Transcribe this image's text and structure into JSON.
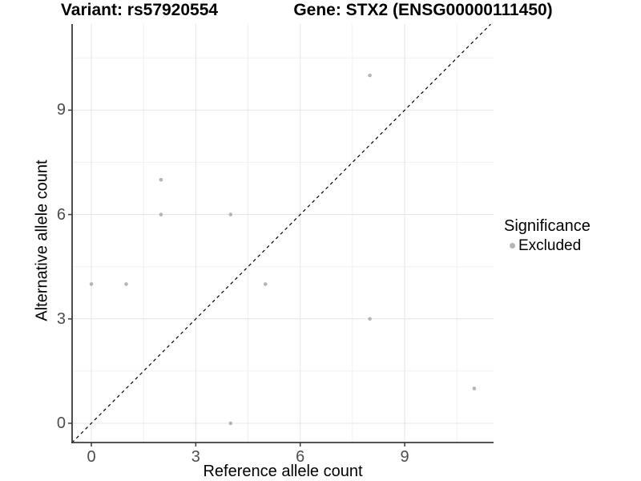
{
  "titles": {
    "left": "Variant: rs57920554",
    "right": "Gene: STX2 (ENSG00000111450)"
  },
  "axes": {
    "x_label": "Reference allele count",
    "y_label": "Alternative allele count"
  },
  "legend": {
    "title": "Significance",
    "items": [
      {
        "label": "Excluded",
        "color": "#b5b5b5"
      }
    ]
  },
  "colors": {
    "point": "#b5b5b5",
    "grid_major": "#e4e4e4",
    "grid_minor": "#f1f1f1",
    "axis_line": "#3b3b3b",
    "tick_mark": "#3b3b3b",
    "tick_label": "#4d4d4d",
    "reference_line": "#000000",
    "background": "#ffffff"
  },
  "chart_data": {
    "type": "scatter",
    "title": "Variant: rs57920554    Gene: STX2 (ENSG00000111450)",
    "xlabel": "Reference allele count",
    "ylabel": "Alternative allele count",
    "xlim": [
      -0.55,
      11.55
    ],
    "ylim": [
      -0.56,
      11.47
    ],
    "x_ticks": [
      0,
      3,
      6,
      9
    ],
    "y_ticks": [
      0,
      3,
      6,
      9
    ],
    "x_minor_ticks": [
      1.5,
      4.5,
      7.5,
      10.5
    ],
    "y_minor_ticks": [
      1.5,
      4.5,
      7.5,
      10.5
    ],
    "grid": true,
    "legend_position": "right",
    "reference_line": {
      "equation": "y = x",
      "style": "dashed",
      "color": "#000000"
    },
    "series": [
      {
        "name": "Excluded",
        "color": "#b5b5b5",
        "points": [
          [
            0,
            4
          ],
          [
            1,
            4
          ],
          [
            2,
            6
          ],
          [
            2,
            7
          ],
          [
            4,
            0
          ],
          [
            4,
            6
          ],
          [
            5,
            4
          ],
          [
            8,
            3
          ],
          [
            8,
            10
          ],
          [
            11,
            1
          ]
        ]
      }
    ]
  }
}
